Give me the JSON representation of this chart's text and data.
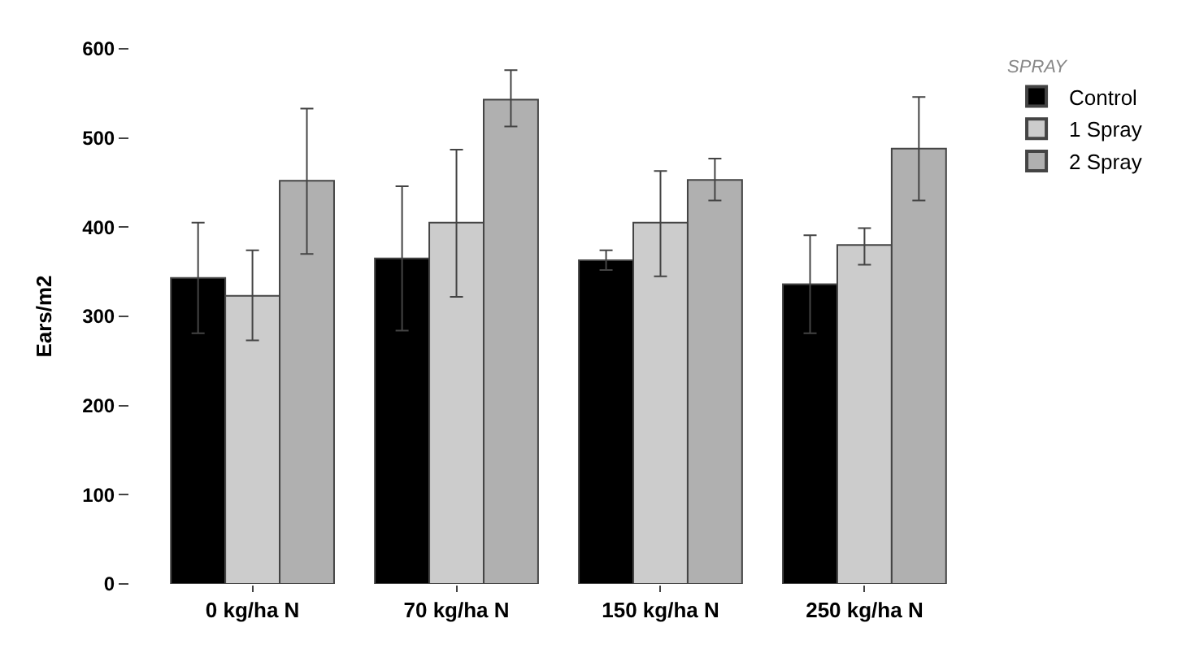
{
  "chart_data": {
    "type": "bar",
    "ylabel": "Ears/m2",
    "legend_title": "SPRAY",
    "legend": "top right",
    "categories": [
      "0 kg/ha N",
      "70 kg/ha N",
      "150 kg/ha N",
      "250 kg/ha N"
    ],
    "ylim": [
      0,
      600
    ],
    "yticks": [
      0,
      100,
      200,
      300,
      400,
      500,
      600
    ],
    "series": [
      {
        "name": "Control",
        "color": "#000000",
        "values": [
          343,
          365,
          363,
          336
        ],
        "errors": [
          [
            281,
            405
          ],
          [
            284,
            446
          ],
          [
            352,
            374
          ],
          [
            281,
            391
          ]
        ]
      },
      {
        "name": "1 Spray",
        "color": "#cccccc",
        "values": [
          323,
          405,
          405,
          380
        ],
        "errors": [
          [
            273,
            374
          ],
          [
            322,
            487
          ],
          [
            345,
            463
          ],
          [
            358,
            399
          ]
        ]
      },
      {
        "name": "2 Spray",
        "color": "#b0b0b0",
        "values": [
          452,
          543,
          453,
          488
        ],
        "errors": [
          [
            370,
            533
          ],
          [
            513,
            576
          ],
          [
            430,
            477
          ],
          [
            430,
            546
          ]
        ]
      }
    ]
  }
}
